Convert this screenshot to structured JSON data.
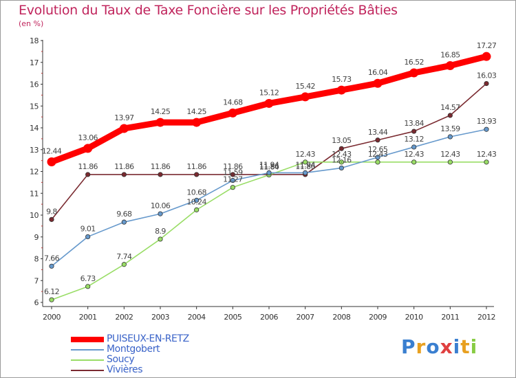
{
  "chart_data": {
    "type": "line",
    "title": "Evolution du Taux de Taxe Foncière sur les Propriétés Bâties",
    "subtitle": "(en %)",
    "xlabel": "",
    "ylabel": "(en %)",
    "x": [
      "2000",
      "2001",
      "2002",
      "2003",
      "2004",
      "2005",
      "2006",
      "2007",
      "2008",
      "2009",
      "2010",
      "2011",
      "2012"
    ],
    "ylim": [
      6,
      18
    ],
    "yticks": [
      "6",
      "7",
      "8",
      "9",
      "10",
      "11",
      "12",
      "13",
      "14",
      "15",
      "16",
      "17",
      "18"
    ],
    "grid": false,
    "legend_position": "bottom-left",
    "series": [
      {
        "name": "PUISEUX-EN-RETZ",
        "color": "#ff0000",
        "values": [
          12.44,
          13.06,
          13.97,
          14.25,
          14.25,
          14.68,
          15.12,
          15.42,
          15.73,
          16.04,
          16.52,
          16.85,
          17.27
        ],
        "labels": [
          "12.44",
          "13.06",
          "13.97",
          "14.25",
          "14.25",
          "14.68",
          "15.12",
          "15.42",
          "15.73",
          "16.04",
          "16.52",
          "16.85",
          "17.27"
        ]
      },
      {
        "name": "Montgobert",
        "color": "#6699cc",
        "values": [
          7.66,
          9.01,
          9.68,
          10.06,
          10.68,
          11.59,
          11.94,
          11.94,
          12.16,
          12.65,
          13.12,
          13.59,
          13.93
        ],
        "labels": [
          "7.66",
          "9.01",
          "9.68",
          "10.06",
          "10.68",
          "11.59",
          "11.94",
          "11.94",
          "12.16",
          "12.65",
          "13.12",
          "13.59",
          "13.93"
        ]
      },
      {
        "name": "Soucy",
        "color": "#99dd66",
        "values": [
          6.12,
          6.73,
          7.74,
          8.9,
          10.24,
          11.27,
          11.84,
          12.43,
          12.43,
          12.43,
          12.43,
          12.43,
          12.43
        ],
        "labels": [
          "6.12",
          "6.73",
          "7.74",
          "8.9",
          "10.24",
          "11.27",
          "11.84",
          "12.43",
          "12.43",
          "12.43",
          "12.43",
          "12.43",
          "12.43"
        ]
      },
      {
        "name": "Vivières",
        "color": "#7a2a30",
        "values": [
          9.8,
          11.86,
          11.86,
          11.86,
          11.86,
          11.86,
          11.86,
          11.86,
          13.05,
          13.44,
          13.84,
          14.57,
          16.03
        ],
        "labels": [
          "9.8",
          "11.86",
          "11.86",
          "11.86",
          "11.86",
          "11.86",
          "11.86",
          "11.86",
          "13.05",
          "13.44",
          "13.84",
          "14.57",
          "16.03"
        ]
      }
    ]
  },
  "brand": {
    "text": "Proxiti",
    "letters": [
      "P",
      "r",
      "o",
      "x",
      "i",
      "t",
      "i"
    ],
    "colors": [
      "#3a7fd0",
      "#e8a020",
      "#3a7fd0",
      "#e04040",
      "#3a7fd0",
      "#e8a020",
      "#88cc44"
    ]
  }
}
